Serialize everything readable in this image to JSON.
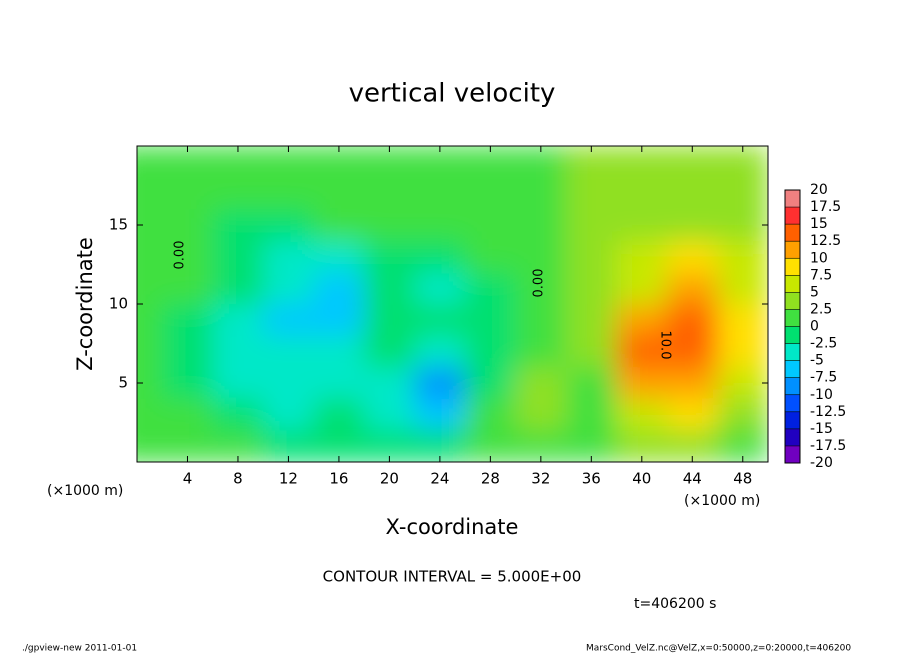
{
  "chart_data": {
    "type": "contour",
    "title": "vertical velocity",
    "x_label": "X-coordinate",
    "y_label": "Z-coordinate",
    "x_unit_label": "(×1000 m)",
    "y_unit_label": "(×1000 m)",
    "contour_interval_label": "CONTOUR INTERVAL = 5.000E+00",
    "time_label": "t=406200 s",
    "footer_left": "./gpview-new  2011-01-01",
    "footer_right": "MarsCond_VelZ.nc@VelZ,x=0:50000,z=0:20000,t=406200",
    "annotations": [
      "0.00",
      "0.00",
      "10.0"
    ],
    "xlim": [
      0,
      50
    ],
    "ylim": [
      0,
      20
    ],
    "xticks": [
      4,
      8,
      12,
      16,
      20,
      24,
      28,
      32,
      36,
      40,
      44,
      48
    ],
    "yticks": [
      5,
      10,
      15
    ],
    "x": [
      0,
      4,
      8,
      12,
      16,
      20,
      24,
      28,
      32,
      36,
      40,
      44,
      48
    ],
    "z": [
      19,
      17,
      15,
      13,
      11,
      9,
      7,
      5,
      3,
      1
    ],
    "values": [
      [
        0,
        0,
        0,
        0,
        0,
        0,
        0,
        1,
        2,
        3,
        3,
        3,
        3
      ],
      [
        0,
        0,
        0,
        0,
        0,
        0,
        0,
        1,
        2,
        3,
        3,
        3,
        3
      ],
      [
        0,
        0,
        -1,
        -1,
        0,
        0,
        0,
        1,
        2,
        3,
        4,
        4,
        3
      ],
      [
        0,
        0,
        -2,
        -4,
        -3,
        -1,
        -2,
        0,
        1,
        3,
        6,
        8,
        5
      ],
      [
        0,
        0,
        -2,
        -5,
        -6,
        -2,
        -3,
        -1,
        1,
        3,
        7,
        11,
        7
      ],
      [
        0,
        -1,
        -4,
        -6,
        -6,
        -2,
        -2,
        -1,
        1,
        3,
        10,
        13,
        8
      ],
      [
        0,
        -1,
        -3,
        -5,
        -4,
        -2,
        -4,
        -1,
        1,
        3,
        13,
        14,
        8
      ],
      [
        0,
        -1,
        -3,
        -4,
        -3,
        -3,
        -8,
        -1,
        3,
        2,
        11,
        12,
        6
      ],
      [
        0,
        0,
        -2,
        -3,
        -2,
        -3,
        -6,
        0,
        4,
        1,
        7,
        8,
        4
      ],
      [
        0,
        1,
        0,
        -1,
        -1,
        -2,
        -2,
        0,
        2,
        0,
        3,
        3,
        2
      ]
    ],
    "colorbar": {
      "levels": [
        -20,
        -17.5,
        -15,
        -12.5,
        -10,
        -7.5,
        -5,
        -2.5,
        0,
        2.5,
        5,
        7.5,
        10,
        12.5,
        15,
        17.5,
        20
      ],
      "colors": [
        "#7000c0",
        "#2000c0",
        "#0020e0",
        "#0050ff",
        "#0090ff",
        "#00c8ff",
        "#00e8c8",
        "#00e070",
        "#40e040",
        "#90e020",
        "#c8e800",
        "#ffe000",
        "#ffa000",
        "#ff6000",
        "#ff3030",
        "#f08080"
      ]
    }
  }
}
